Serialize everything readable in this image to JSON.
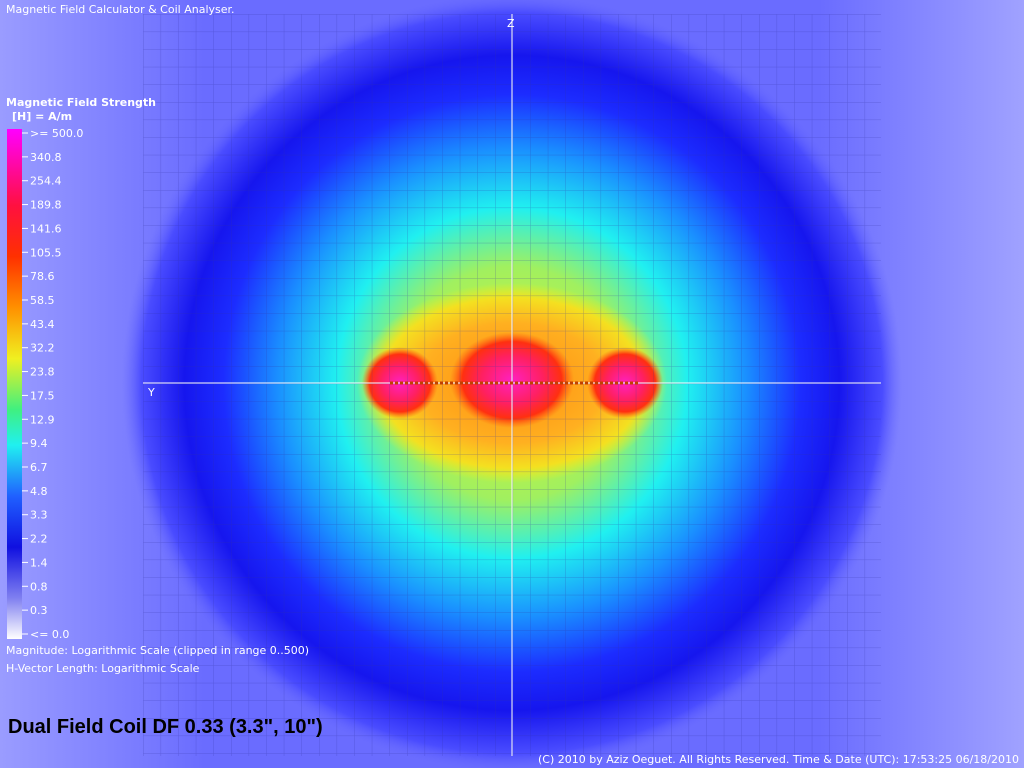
{
  "app_title": "Magnetic Field Calculator & Coil Analyser.",
  "legend": {
    "title": "Magnetic Field Strength",
    "unit": "[H] = A/m",
    "labels": [
      ">= 500.0",
      "340.8",
      "254.4",
      "189.8",
      "141.6",
      "105.5",
      "78.6",
      "58.5",
      "43.4",
      "32.2",
      "23.8",
      "17.5",
      "12.9",
      "9.4",
      "6.7",
      "4.8",
      "3.3",
      "2.2",
      "1.4",
      "0.8",
      "0.3",
      "<= 0.0"
    ]
  },
  "notes": [
    "Magnitude: Logarithmic Scale (clipped in range 0..500)",
    "H-Vector Length: Logarithmic Scale"
  ],
  "axes": {
    "z": "Z",
    "y": "Y"
  },
  "coil_title": "Dual Field Coil DF 0.33 (3.3\", 10\")",
  "footer": "(C) 2010 by Aziz Oeguet. All Rights Reserved.  Time & Date (UTC): 17:53:25  06/18/2010"
}
